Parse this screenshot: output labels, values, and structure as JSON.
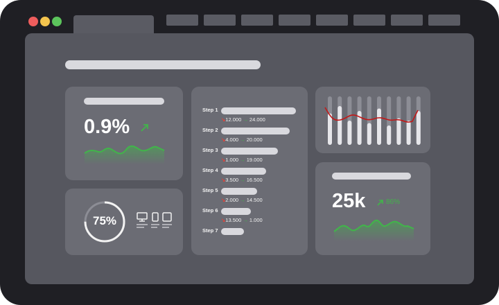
{
  "window": {
    "dot_colors": [
      "#ee5d5d",
      "#f4c44e",
      "#5cc45c"
    ]
  },
  "kpi_rate": {
    "value": "0.9%",
    "trend_icon": "arrow-up-right-icon"
  },
  "progress": {
    "value": "75%",
    "fraction": 0.75,
    "device_icons": [
      "monitor-icon",
      "phone-icon",
      "tablet-icon"
    ]
  },
  "funnel": {
    "steps": [
      {
        "label": "Step 1",
        "down": "12.000",
        "up": "24.000",
        "level": 1.0
      },
      {
        "label": "Step 2",
        "down": "4.000",
        "up": "20.000",
        "level": 0.92
      },
      {
        "label": "Step 3",
        "down": "1.000",
        "up": "19.000",
        "level": 0.76
      },
      {
        "label": "Step 4",
        "down": "3.500",
        "up": "16.500",
        "level": 0.6
      },
      {
        "label": "Step 5",
        "down": "2.000",
        "up": "14.500",
        "level": 0.48
      },
      {
        "label": "Step 6",
        "down": "13.500",
        "up": "1.000",
        "level": 0.4
      },
      {
        "label": "Step 7",
        "down": "",
        "up": "",
        "level": 0.31
      }
    ]
  },
  "kpi_visits": {
    "value": "25k",
    "change": "86%",
    "trend_icon": "arrow-up-right-icon"
  },
  "colors": {
    "accent_green": "#41b54a",
    "accent_red": "#e0443c",
    "card": "#6b6c74",
    "screen": "#56575f"
  }
}
